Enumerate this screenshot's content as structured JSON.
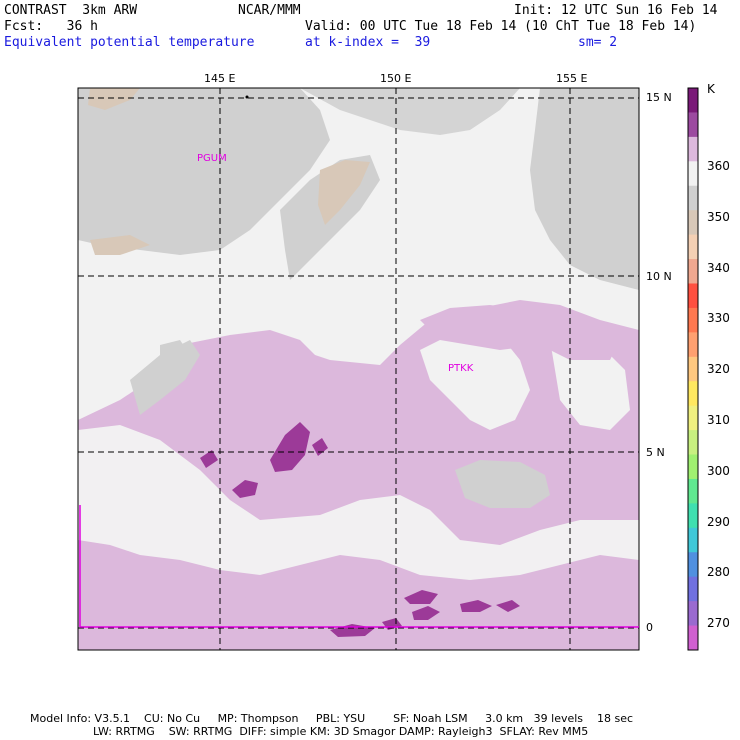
{
  "header": {
    "model": "CONTRAST  3km ARW",
    "org": "NCAR/MMM",
    "init": "Init: 12 UTC Sun 16 Feb 14",
    "fcst": "Fcst:   36 h",
    "valid": "Valid: 00 UTC Tue 18 Feb 14 (10 ChT Tue 18 Feb 14)",
    "field": "Equivalent potential temperature",
    "level": "at k-index =  39",
    "smooth": "sm= 2"
  },
  "map": {
    "lon_ticks": [
      "145 E",
      "150 E",
      "155 E"
    ],
    "lat_ticks": [
      "15 N",
      "10 N",
      "5 N",
      "0"
    ],
    "stations": [
      {
        "id": "PGUM"
      },
      {
        "id": "PTKK"
      }
    ]
  },
  "colorbar": {
    "unit": "K",
    "labels": [
      "360",
      "350",
      "340",
      "330",
      "320",
      "310",
      "300",
      "290",
      "280",
      "270"
    ],
    "colors": [
      "#7a1a78",
      "#9c4aa0",
      "#dcb8dc",
      "#f2f2f2",
      "#d0d0d0",
      "#d8c8b8",
      "#f4d0b4",
      "#f0a890",
      "#ff5040",
      "#ff7850",
      "#ffa070",
      "#ffc880",
      "#ffe860",
      "#f0f080",
      "#c8f080",
      "#a0f070",
      "#60e890",
      "#40e0b0",
      "#40c8d8",
      "#5090e0",
      "#7070e0",
      "#9a6ad0",
      "#d060d0"
    ]
  },
  "footer": {
    "line1": "Model Info: V3.5.1    CU: No Cu     MP: Thompson     PBL: YSU        SF: Noah LSM     3.0 km   39 levels    18 sec",
    "line2": "                  LW: RRTMG    SW: RRTMG  DIFF: simple KM: 3D Smagor DAMP: Rayleigh3  SFLAY: Rev MM5"
  }
}
